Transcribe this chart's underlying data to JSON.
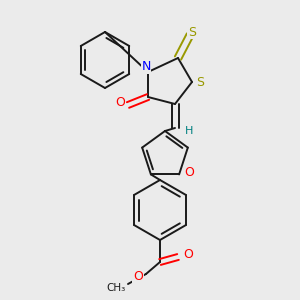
{
  "bg_color": "#ebebeb",
  "bond_color": "#1a1a1a",
  "n_color": "#0000ff",
  "o_color": "#ff0000",
  "s_color": "#999900",
  "h_color": "#008080",
  "line_width": 1.4,
  "figsize": [
    3.0,
    3.0
  ],
  "dpi": 100,
  "xlim": [
    0,
    300
  ],
  "ylim": [
    0,
    300
  ]
}
